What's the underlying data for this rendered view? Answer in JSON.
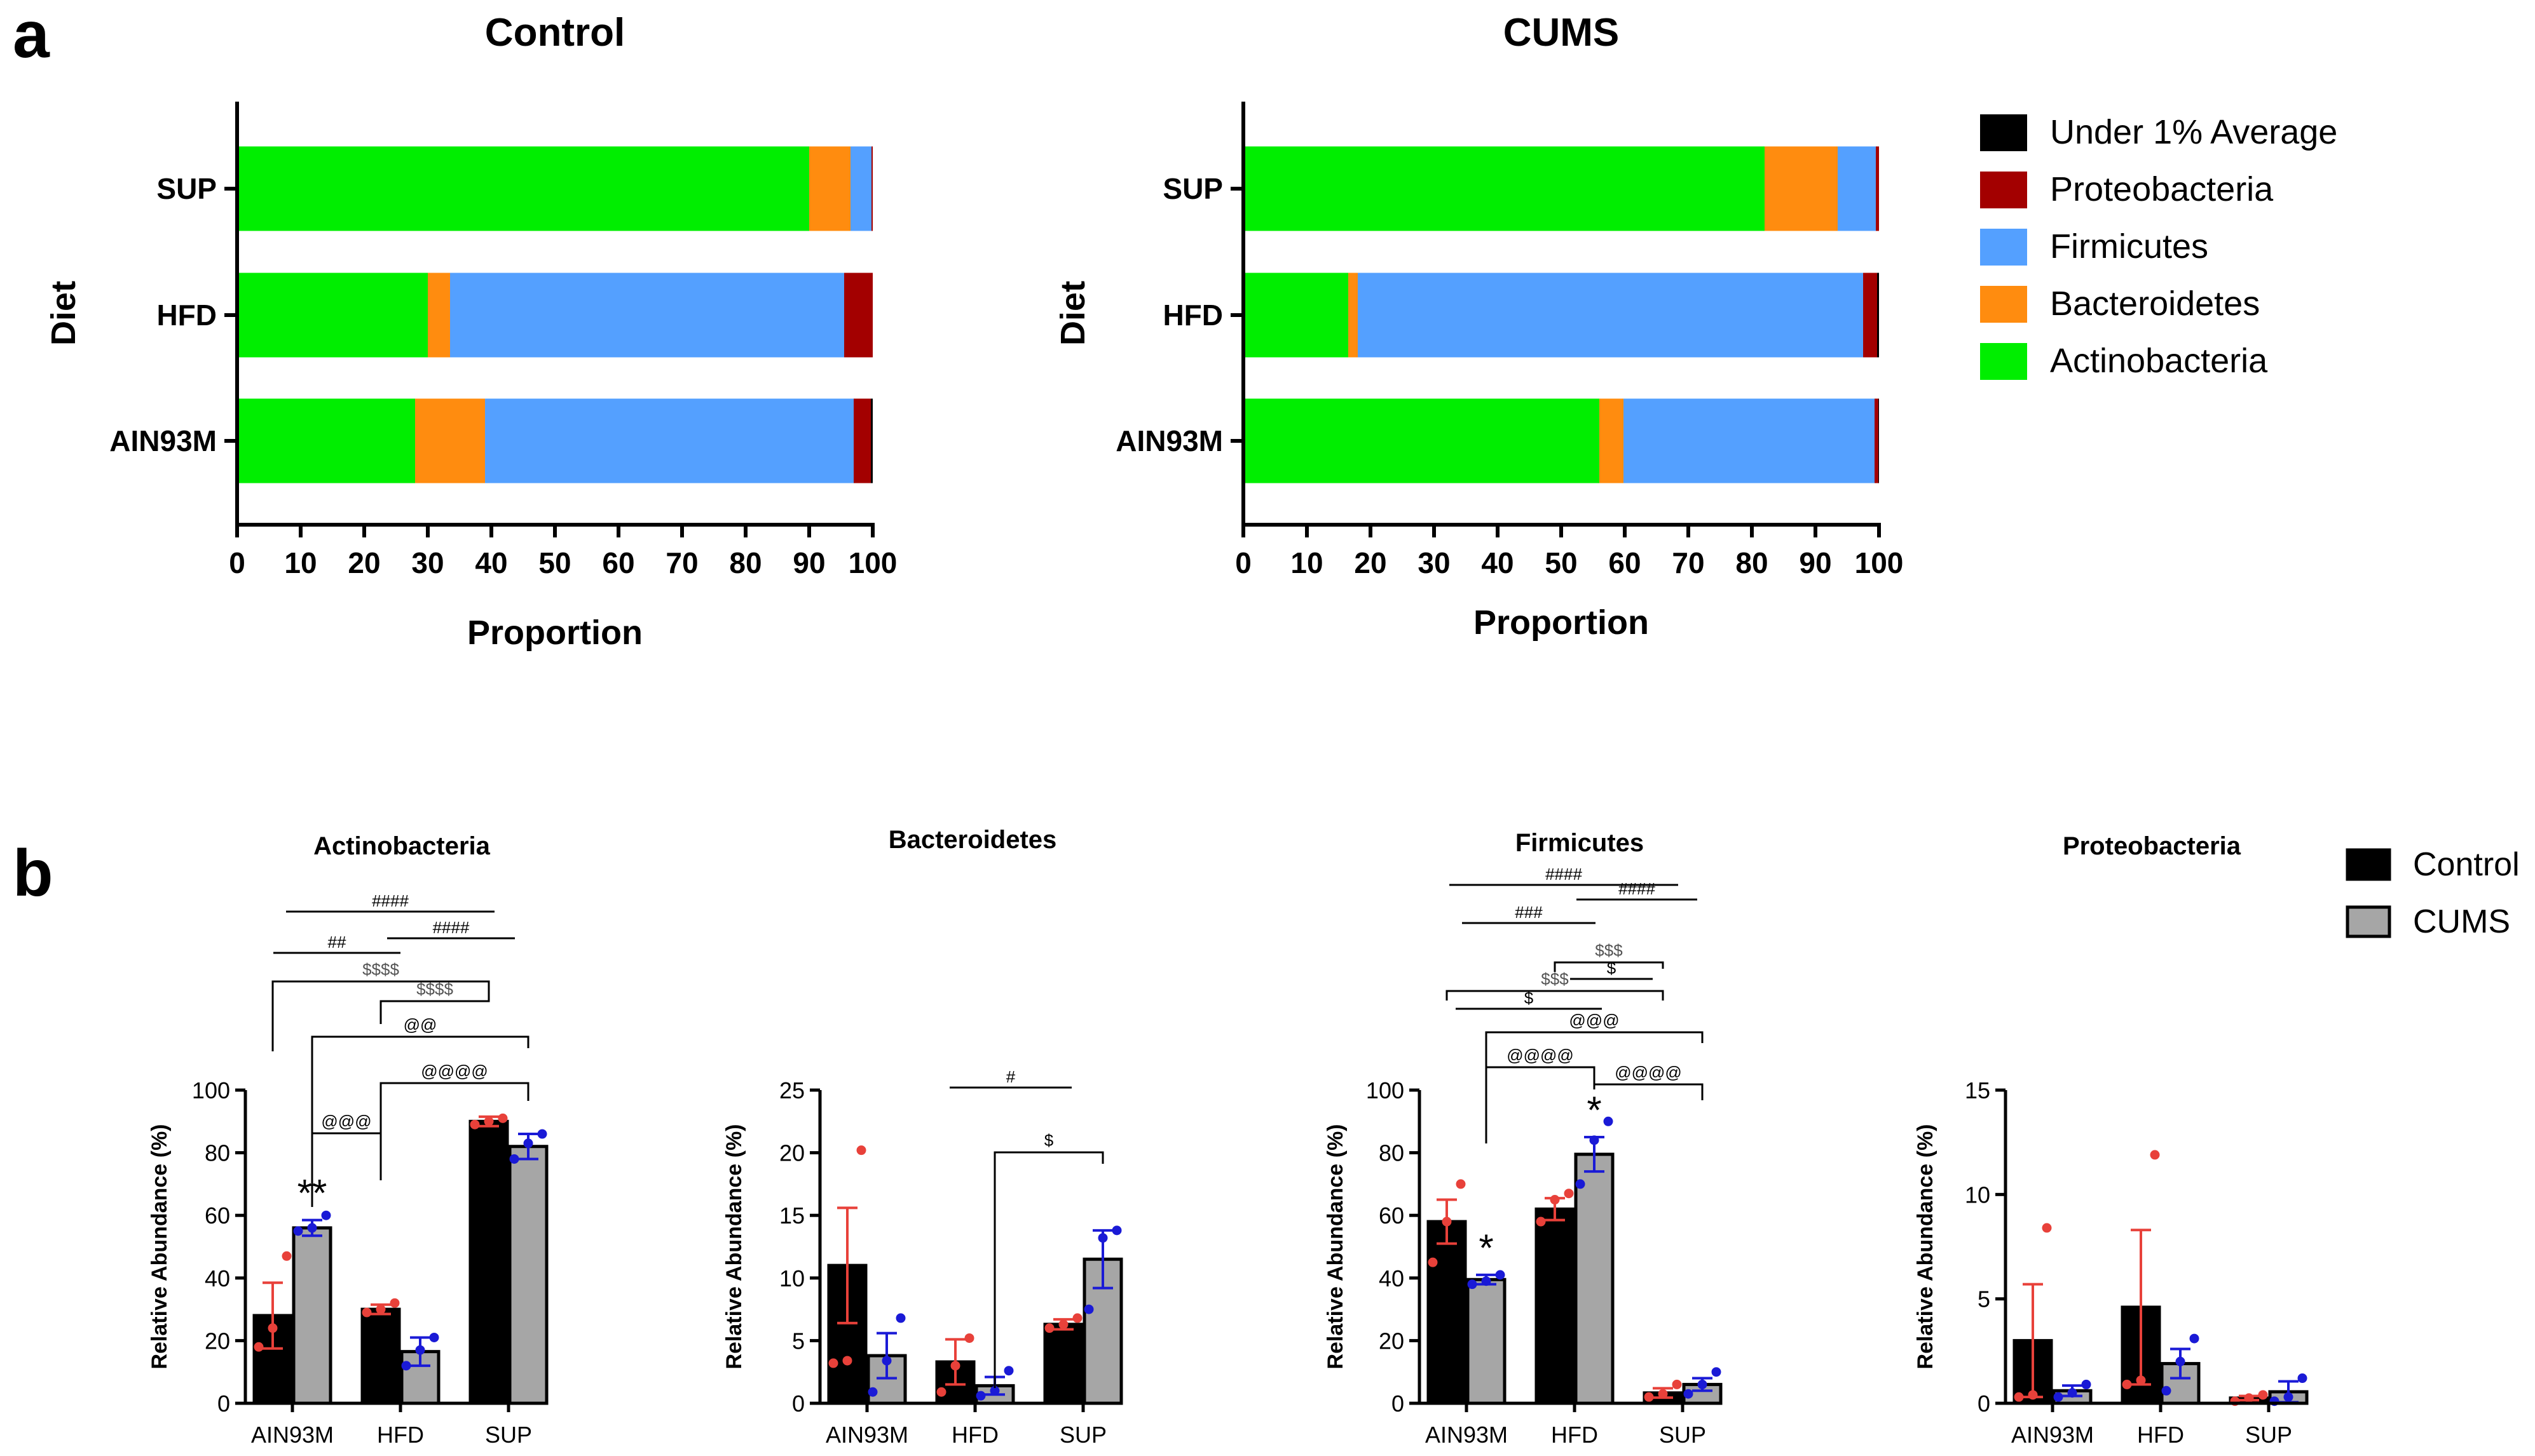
{
  "panel_labels": {
    "a": "a",
    "b": "b"
  },
  "legend_a": {
    "entries": [
      {
        "label": "Under 1% Average",
        "color": "#000000"
      },
      {
        "label": "Proteobacteria",
        "color": "#a30000"
      },
      {
        "label": "Firmicutes",
        "color": "#54a0ff"
      },
      {
        "label": "Bacteroidetes",
        "color": "#ff8c0f"
      },
      {
        "label": "Actinobacteria",
        "color": "#00ee00"
      }
    ]
  },
  "legend_b": {
    "entries": [
      {
        "label": "Control",
        "color": "#000000"
      },
      {
        "label": "CUMS",
        "color": "#a6a6a6"
      }
    ]
  },
  "chart_data": [
    {
      "id": "a-control",
      "type": "bar",
      "orientation": "horizontal",
      "stacked": true,
      "title": "Control",
      "xlabel": "Proportion",
      "ylabel": "Diet",
      "xlim": [
        0,
        100
      ],
      "xticks": [
        "0",
        "10",
        "20",
        "30",
        "40",
        "50",
        "60",
        "70",
        "80",
        "90",
        "100"
      ],
      "categories": [
        "SUP",
        "HFD",
        "AIN93M"
      ],
      "series": [
        {
          "name": "Actinobacteria",
          "color": "#00ee00",
          "values": [
            90.0,
            30.0,
            28.0
          ]
        },
        {
          "name": "Bacteroidetes",
          "color": "#ff8c0f",
          "values": [
            6.5,
            3.5,
            11.0
          ]
        },
        {
          "name": "Firmicutes",
          "color": "#54a0ff",
          "values": [
            3.3,
            62.0,
            58.0
          ]
        },
        {
          "name": "Proteobacteria",
          "color": "#a30000",
          "values": [
            0.2,
            4.5,
            2.7
          ]
        },
        {
          "name": "Under 1% Average",
          "color": "#000000",
          "values": [
            0.0,
            0.0,
            0.3
          ]
        }
      ]
    },
    {
      "id": "a-cums",
      "type": "bar",
      "orientation": "horizontal",
      "stacked": true,
      "title": "CUMS",
      "xlabel": "Proportion",
      "ylabel": "Diet",
      "xlim": [
        0,
        100
      ],
      "xticks": [
        "0",
        "10",
        "20",
        "30",
        "40",
        "50",
        "60",
        "70",
        "80",
        "90",
        "100"
      ],
      "categories": [
        "SUP",
        "HFD",
        "AIN93M"
      ],
      "series": [
        {
          "name": "Actinobacteria",
          "color": "#00ee00",
          "values": [
            82.0,
            16.5,
            56.0
          ]
        },
        {
          "name": "Bacteroidetes",
          "color": "#ff8c0f",
          "values": [
            11.5,
            1.5,
            3.8
          ]
        },
        {
          "name": "Firmicutes",
          "color": "#54a0ff",
          "values": [
            6.0,
            79.5,
            39.5
          ]
        },
        {
          "name": "Proteobacteria",
          "color": "#a30000",
          "values": [
            0.5,
            2.2,
            0.6
          ]
        },
        {
          "name": "Under 1% Average",
          "color": "#000000",
          "values": [
            0.0,
            0.3,
            0.1
          ]
        }
      ]
    },
    {
      "id": "b-actinobacteria",
      "type": "bar",
      "title": "Actinobacteria",
      "ylabel": "Relative Abundance (%)",
      "ylim": [
        0,
        100
      ],
      "yticks": [
        "0",
        "20",
        "40",
        "60",
        "80",
        "100"
      ],
      "categories": [
        "AIN93M",
        "HFD",
        "SUP"
      ],
      "series": [
        {
          "name": "Control",
          "values": [
            28.0,
            30.0,
            90.0
          ],
          "errors": [
            10.5,
            1.5,
            1.5
          ],
          "points": [
            [
              18,
              24,
              47
            ],
            [
              29,
              30,
              32
            ],
            [
              89,
              90,
              91
            ]
          ]
        },
        {
          "name": "CUMS",
          "values": [
            56.0,
            16.5,
            82.0
          ],
          "errors": [
            2.5,
            4.5,
            4.0
          ],
          "points": [
            [
              55,
              56,
              60
            ],
            [
              12,
              17,
              21
            ],
            [
              78,
              83,
              86
            ]
          ]
        }
      ],
      "annotations": [
        {
          "text": "**",
          "type": "star"
        },
        {
          "text": "@@@",
          "type": "bracket"
        },
        {
          "text": "@@@@",
          "type": "bracket"
        },
        {
          "text": "@@",
          "type": "bracket"
        },
        {
          "text": "$$$$",
          "type": "bracket"
        },
        {
          "text": "$$$$",
          "type": "bracket"
        },
        {
          "text": "##",
          "type": "line"
        },
        {
          "text": "####",
          "type": "line"
        },
        {
          "text": "####",
          "type": "line"
        }
      ]
    },
    {
      "id": "b-bacteroidetes",
      "type": "bar",
      "title": "Bacteroidetes",
      "ylabel": "Relative Abundance (%)",
      "ylim": [
        0,
        25
      ],
      "yticks": [
        "0",
        "5",
        "10",
        "15",
        "20",
        "25"
      ],
      "categories": [
        "AIN93M",
        "HFD",
        "SUP"
      ],
      "series": [
        {
          "name": "Control",
          "values": [
            11.0,
            3.3,
            6.3
          ],
          "errors": [
            4.6,
            1.8,
            0.4
          ],
          "points": [
            [
              3.2,
              3.4,
              20.2
            ],
            [
              0.9,
              3.0,
              5.2
            ],
            [
              6.0,
              6.3,
              6.8
            ]
          ]
        },
        {
          "name": "CUMS",
          "values": [
            3.8,
            1.4,
            11.5
          ],
          "errors": [
            1.8,
            0.7,
            2.3
          ],
          "points": [
            [
              0.9,
              3.4,
              6.8
            ],
            [
              0.6,
              1.0,
              2.6
            ],
            [
              7.5,
              13.2,
              13.8
            ]
          ]
        }
      ],
      "annotations": [
        {
          "text": "#",
          "type": "line"
        },
        {
          "text": "$",
          "type": "bracket"
        }
      ]
    },
    {
      "id": "b-firmicutes",
      "type": "bar",
      "title": "Firmicutes",
      "ylabel": "Relative Abundance (%)",
      "ylim": [
        0,
        100
      ],
      "yticks": [
        "0",
        "20",
        "40",
        "60",
        "80",
        "100"
      ],
      "categories": [
        "AIN93M",
        "HFD",
        "SUP"
      ],
      "series": [
        {
          "name": "Control",
          "values": [
            58.0,
            62.0,
            3.3
          ],
          "errors": [
            7.0,
            3.5,
            1.5
          ],
          "points": [
            [
              45,
              58,
              70
            ],
            [
              58,
              65,
              67
            ],
            [
              2,
              3,
              6
            ]
          ]
        },
        {
          "name": "CUMS",
          "values": [
            39.5,
            79.5,
            6.0
          ],
          "errors": [
            1.5,
            5.5,
            2.0
          ],
          "points": [
            [
              38,
              39,
              41
            ],
            [
              70,
              84,
              90
            ],
            [
              3,
              6,
              10
            ]
          ]
        }
      ],
      "annotations": [
        {
          "text": "*",
          "type": "star"
        },
        {
          "text": "*",
          "type": "star"
        },
        {
          "text": "@@@@",
          "type": "bracket"
        },
        {
          "text": "@@@@",
          "type": "bracket"
        },
        {
          "text": "@@@",
          "type": "bracket"
        },
        {
          "text": "$$$",
          "type": "bracket"
        },
        {
          "text": "$",
          "type": "bracket"
        },
        {
          "text": "$$$",
          "type": "bracket"
        },
        {
          "text": "$",
          "type": "bracket"
        },
        {
          "text": "###",
          "type": "line"
        },
        {
          "text": "####",
          "type": "line"
        },
        {
          "text": "####",
          "type": "line"
        }
      ]
    },
    {
      "id": "b-proteobacteria",
      "type": "bar",
      "title": "Proteobacteria",
      "ylabel": "Relative Abundance (%)",
      "ylim": [
        0,
        15
      ],
      "yticks": [
        "0",
        "5",
        "10",
        "15"
      ],
      "categories": [
        "AIN93M",
        "HFD",
        "SUP"
      ],
      "series": [
        {
          "name": "Control",
          "values": [
            3.0,
            4.6,
            0.25
          ],
          "errors": [
            2.7,
            3.7,
            0.1
          ],
          "points": [
            [
              0.3,
              0.4,
              8.4
            ],
            [
              0.9,
              1.1,
              11.9
            ],
            [
              0.1,
              0.25,
              0.4
            ]
          ]
        },
        {
          "name": "CUMS",
          "values": [
            0.6,
            1.9,
            0.55
          ],
          "errors": [
            0.25,
            0.7,
            0.5
          ],
          "points": [
            [
              0.3,
              0.5,
              0.9
            ],
            [
              0.6,
              2.0,
              3.1
            ],
            [
              0.1,
              0.3,
              1.2
            ]
          ]
        }
      ],
      "annotations": []
    }
  ]
}
